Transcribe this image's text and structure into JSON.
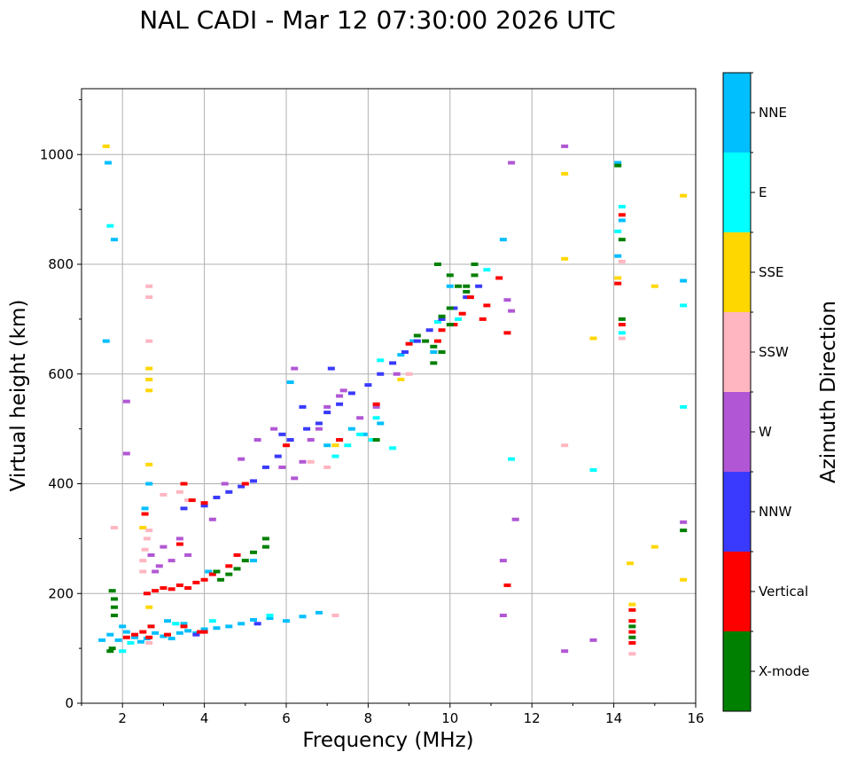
{
  "chart_data": {
    "type": "scatter",
    "title": "NAL CADI - Mar 12 07:30:00 2026 UTC",
    "xlabel": "Frequency (MHz)",
    "ylabel": "Virtual height (km)",
    "xlim": [
      1,
      16
    ],
    "ylim": [
      0,
      1120
    ],
    "xticks": [
      2,
      4,
      6,
      8,
      10,
      12,
      14,
      16
    ],
    "yticks": [
      0,
      200,
      400,
      600,
      800,
      1000
    ],
    "grid": true,
    "colorbar": {
      "label": "Azimuth Direction",
      "categories": [
        "X-mode",
        "Vertical",
        "NNW",
        "W",
        "SSW",
        "SSE",
        "E",
        "NNE"
      ],
      "colors": [
        "#008000",
        "#ff0000",
        "#3a3aff",
        "#b157d5",
        "#ffb6c1",
        "#ffd700",
        "#00ffff",
        "#00bfff"
      ]
    },
    "series": [
      {
        "name": "NNE",
        "points": [
          [
            1.6,
            660
          ],
          [
            1.65,
            985
          ],
          [
            1.8,
            845
          ],
          [
            1.5,
            115
          ],
          [
            1.7,
            125
          ],
          [
            1.9,
            115
          ],
          [
            2.1,
            130
          ],
          [
            2.3,
            120
          ],
          [
            2.45,
            112
          ],
          [
            2.6,
            118
          ],
          [
            2.8,
            128
          ],
          [
            3.0,
            122
          ],
          [
            3.2,
            118
          ],
          [
            3.4,
            128
          ],
          [
            3.6,
            132
          ],
          [
            3.8,
            128
          ],
          [
            4.0,
            135
          ],
          [
            4.3,
            137
          ],
          [
            4.6,
            140
          ],
          [
            4.9,
            145
          ],
          [
            5.2,
            152
          ],
          [
            5.6,
            155
          ],
          [
            6.0,
            150
          ],
          [
            6.4,
            158
          ],
          [
            6.8,
            165
          ],
          [
            2.65,
            400
          ],
          [
            2.55,
            355
          ],
          [
            3.1,
            150
          ],
          [
            3.5,
            145
          ],
          [
            4.1,
            240
          ],
          [
            5.2,
            260
          ],
          [
            6.1,
            585
          ],
          [
            7.0,
            470
          ],
          [
            7.6,
            500
          ],
          [
            7.9,
            490
          ],
          [
            8.3,
            510
          ],
          [
            8.8,
            635
          ],
          [
            9.1,
            660
          ],
          [
            9.6,
            640
          ],
          [
            10.0,
            760
          ],
          [
            11.3,
            845
          ],
          [
            14.1,
            985
          ],
          [
            14.1,
            815
          ],
          [
            14.2,
            880
          ],
          [
            15.7,
            770
          ],
          [
            2.0,
            140
          ]
        ]
      },
      {
        "name": "E",
        "points": [
          [
            1.7,
            870
          ],
          [
            2.0,
            95
          ],
          [
            2.2,
            110
          ],
          [
            2.7,
            140
          ],
          [
            3.3,
            145
          ],
          [
            4.2,
            150
          ],
          [
            5.6,
            160
          ],
          [
            7.2,
            450
          ],
          [
            7.5,
            470
          ],
          [
            7.8,
            490
          ],
          [
            8.1,
            480
          ],
          [
            8.2,
            520
          ],
          [
            8.6,
            465
          ],
          [
            9.7,
            695
          ],
          [
            10.2,
            700
          ],
          [
            10.9,
            790
          ],
          [
            11.5,
            445
          ],
          [
            13.5,
            425
          ],
          [
            14.1,
            860
          ],
          [
            14.2,
            675
          ],
          [
            14.2,
            905
          ],
          [
            15.7,
            540
          ],
          [
            15.7,
            725
          ],
          [
            8.3,
            625
          ]
        ]
      },
      {
        "name": "SSE",
        "points": [
          [
            1.6,
            1015
          ],
          [
            2.65,
            590
          ],
          [
            2.65,
            570
          ],
          [
            2.65,
            610
          ],
          [
            2.5,
            320
          ],
          [
            2.65,
            175
          ],
          [
            2.65,
            435
          ],
          [
            7.2,
            470
          ],
          [
            8.8,
            590
          ],
          [
            12.8,
            965
          ],
          [
            12.8,
            810
          ],
          [
            13.5,
            665
          ],
          [
            14.1,
            775
          ],
          [
            14.4,
            255
          ],
          [
            15.0,
            760
          ],
          [
            15.0,
            285
          ],
          [
            15.7,
            925
          ],
          [
            15.7,
            225
          ],
          [
            14.45,
            180
          ]
        ]
      },
      {
        "name": "SSW",
        "points": [
          [
            2.5,
            240
          ],
          [
            2.5,
            260
          ],
          [
            2.55,
            280
          ],
          [
            2.6,
            300
          ],
          [
            2.65,
            315
          ],
          [
            2.65,
            740
          ],
          [
            2.65,
            760
          ],
          [
            2.65,
            660
          ],
          [
            2.65,
            110
          ],
          [
            3.0,
            380
          ],
          [
            3.4,
            385
          ],
          [
            3.6,
            370
          ],
          [
            6.6,
            440
          ],
          [
            7.0,
            430
          ],
          [
            7.2,
            160
          ],
          [
            9.0,
            600
          ],
          [
            12.8,
            470
          ],
          [
            14.2,
            665
          ],
          [
            14.2,
            805
          ],
          [
            14.45,
            90
          ],
          [
            1.8,
            320
          ]
        ]
      },
      {
        "name": "W",
        "points": [
          [
            2.1,
            550
          ],
          [
            2.1,
            455
          ],
          [
            2.7,
            270
          ],
          [
            2.8,
            240
          ],
          [
            2.9,
            250
          ],
          [
            3.0,
            285
          ],
          [
            3.2,
            260
          ],
          [
            3.4,
            300
          ],
          [
            3.6,
            270
          ],
          [
            4.2,
            335
          ],
          [
            4.5,
            400
          ],
          [
            4.9,
            445
          ],
          [
            5.3,
            480
          ],
          [
            5.7,
            500
          ],
          [
            5.9,
            430
          ],
          [
            6.2,
            410
          ],
          [
            6.4,
            440
          ],
          [
            6.6,
            480
          ],
          [
            6.8,
            500
          ],
          [
            7.0,
            540
          ],
          [
            7.3,
            560
          ],
          [
            6.2,
            610
          ],
          [
            7.4,
            570
          ],
          [
            7.8,
            520
          ],
          [
            8.2,
            540
          ],
          [
            8.7,
            600
          ],
          [
            11.3,
            160
          ],
          [
            11.3,
            260
          ],
          [
            11.4,
            735
          ],
          [
            11.5,
            985
          ],
          [
            11.5,
            715
          ],
          [
            11.6,
            335
          ],
          [
            12.8,
            1015
          ],
          [
            12.8,
            95
          ],
          [
            13.5,
            115
          ],
          [
            15.7,
            330
          ]
        ]
      },
      {
        "name": "NNW",
        "points": [
          [
            3.5,
            355
          ],
          [
            4.0,
            360
          ],
          [
            4.3,
            375
          ],
          [
            4.6,
            385
          ],
          [
            4.9,
            395
          ],
          [
            5.2,
            405
          ],
          [
            5.5,
            430
          ],
          [
            5.8,
            450
          ],
          [
            6.1,
            480
          ],
          [
            6.5,
            500
          ],
          [
            6.8,
            510
          ],
          [
            7.0,
            530
          ],
          [
            7.3,
            545
          ],
          [
            7.6,
            565
          ],
          [
            8.0,
            580
          ],
          [
            8.3,
            600
          ],
          [
            8.6,
            620
          ],
          [
            8.9,
            640
          ],
          [
            9.2,
            660
          ],
          [
            9.5,
            680
          ],
          [
            9.8,
            700
          ],
          [
            10.1,
            720
          ],
          [
            10.4,
            740
          ],
          [
            10.7,
            760
          ],
          [
            5.9,
            490
          ],
          [
            6.4,
            540
          ],
          [
            7.1,
            610
          ],
          [
            3.8,
            125
          ],
          [
            5.3,
            145
          ]
        ]
      },
      {
        "name": "Vertical",
        "points": [
          [
            2.1,
            120
          ],
          [
            2.3,
            125
          ],
          [
            2.5,
            130
          ],
          [
            2.65,
            120
          ],
          [
            2.7,
            140
          ],
          [
            3.1,
            125
          ],
          [
            3.5,
            140
          ],
          [
            3.9,
            130
          ],
          [
            4.0,
            130
          ],
          [
            2.6,
            200
          ],
          [
            2.8,
            205
          ],
          [
            3.0,
            210
          ],
          [
            3.2,
            208
          ],
          [
            3.4,
            215
          ],
          [
            3.6,
            210
          ],
          [
            3.8,
            220
          ],
          [
            4.0,
            225
          ],
          [
            4.2,
            235
          ],
          [
            4.6,
            250
          ],
          [
            4.8,
            270
          ],
          [
            3.4,
            290
          ],
          [
            3.5,
            400
          ],
          [
            3.7,
            370
          ],
          [
            4.0,
            365
          ],
          [
            5.0,
            400
          ],
          [
            6.0,
            470
          ],
          [
            7.3,
            480
          ],
          [
            8.2,
            545
          ],
          [
            9.0,
            655
          ],
          [
            9.7,
            660
          ],
          [
            9.8,
            680
          ],
          [
            10.1,
            690
          ],
          [
            10.3,
            710
          ],
          [
            10.5,
            740
          ],
          [
            10.8,
            700
          ],
          [
            10.9,
            725
          ],
          [
            11.2,
            775
          ],
          [
            11.4,
            675
          ],
          [
            11.4,
            215
          ],
          [
            14.1,
            765
          ],
          [
            14.2,
            690
          ],
          [
            14.2,
            890
          ],
          [
            14.45,
            170
          ],
          [
            14.45,
            150
          ],
          [
            14.45,
            130
          ],
          [
            14.45,
            110
          ],
          [
            2.55,
            345
          ]
        ]
      },
      {
        "name": "X-mode",
        "points": [
          [
            1.75,
            205
          ],
          [
            1.8,
            190
          ],
          [
            1.8,
            175
          ],
          [
            1.8,
            160
          ],
          [
            1.75,
            100
          ],
          [
            1.7,
            95
          ],
          [
            4.3,
            240
          ],
          [
            4.4,
            225
          ],
          [
            4.6,
            235
          ],
          [
            4.8,
            245
          ],
          [
            5.0,
            260
          ],
          [
            5.2,
            275
          ],
          [
            5.5,
            300
          ],
          [
            5.5,
            285
          ],
          [
            9.2,
            670
          ],
          [
            9.4,
            660
          ],
          [
            9.6,
            650
          ],
          [
            9.6,
            620
          ],
          [
            9.8,
            640
          ],
          [
            9.8,
            705
          ],
          [
            10.0,
            690
          ],
          [
            10.0,
            720
          ],
          [
            10.0,
            780
          ],
          [
            10.2,
            760
          ],
          [
            10.4,
            750
          ],
          [
            10.4,
            760
          ],
          [
            10.6,
            800
          ],
          [
            10.6,
            780
          ],
          [
            9.7,
            800
          ],
          [
            14.1,
            980
          ],
          [
            14.2,
            845
          ],
          [
            14.2,
            700
          ],
          [
            14.45,
            140
          ],
          [
            14.45,
            120
          ],
          [
            15.7,
            315
          ],
          [
            8.2,
            480
          ]
        ]
      }
    ]
  }
}
